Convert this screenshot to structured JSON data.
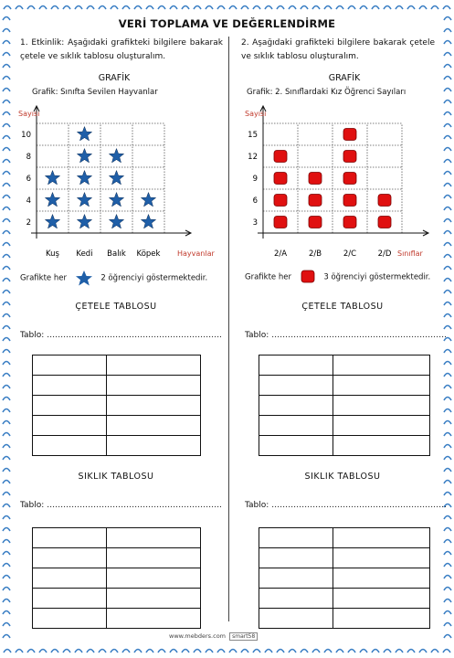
{
  "title": "VERİ TOPLAMA VE DEĞERLENDİRME",
  "left": {
    "instruction": "1. Etkinlik: Aşağıdaki grafikteki bilgilere bakarak çetele ve sıklık tablosu oluşturalım.",
    "graph_heading": "GRAFİK",
    "graph_caption": "Grafik: Sınıfta Sevilen Hayvanlar",
    "legend_prefix": "Grafikte her",
    "legend_suffix": "2 öğrenciyi göstermektedir.",
    "tally_title": "ÇETELE TABLOSU",
    "tally_label": "Tablo: ……………………………………………………….",
    "freq_title": "SIKLIK TABLOSU",
    "freq_label": "Tablo: ……………………………………………………….",
    "icon": "star-icon",
    "icon_color": "#1f5fa8"
  },
  "right": {
    "instruction": "2. Aşağıdaki grafikteki bilgilere bakarak çetele ve sıklık tablosu oluşturalım.",
    "graph_heading": "GRAFİK",
    "graph_caption": "Grafik: 2. Sınıflardaki Kız Öğrenci Sayıları",
    "legend_prefix": "Grafikte her",
    "legend_suffix": "3 öğrenciyi göstermektedir.",
    "tally_title": "ÇETELE TABLOSU",
    "tally_label": "Tablo: ……………………………………………………….",
    "freq_title": "SIKLIK TABLOSU",
    "freq_label": "Tablo: ……………………………………………………….",
    "icon": "red-square-icon",
    "icon_color": "#e01010"
  },
  "chart_data": [
    {
      "type": "bar",
      "title": "Grafik: Sınıfta Sevilen Hayvanlar",
      "ylabel": "Sayısı",
      "xlabel": "Hayvanlar",
      "yticks": [
        2,
        4,
        6,
        8,
        10
      ],
      "categories": [
        "Kuş",
        "Kedi",
        "Balık",
        "Köpek"
      ],
      "values": [
        6,
        10,
        8,
        4
      ],
      "unit_per_icon": 2
    },
    {
      "type": "bar",
      "title": "Grafik: 2. Sınıflardaki Kız Öğrenci Sayıları",
      "ylabel": "Sayısı",
      "xlabel": "Sınıflar",
      "yticks": [
        3,
        6,
        9,
        12,
        15
      ],
      "categories": [
        "2/A",
        "2/B",
        "2/C",
        "2/D"
      ],
      "values": [
        12,
        9,
        15,
        6
      ],
      "unit_per_icon": 3
    }
  ],
  "footer": {
    "site": "www.mebders.com",
    "badge": "smart58"
  }
}
